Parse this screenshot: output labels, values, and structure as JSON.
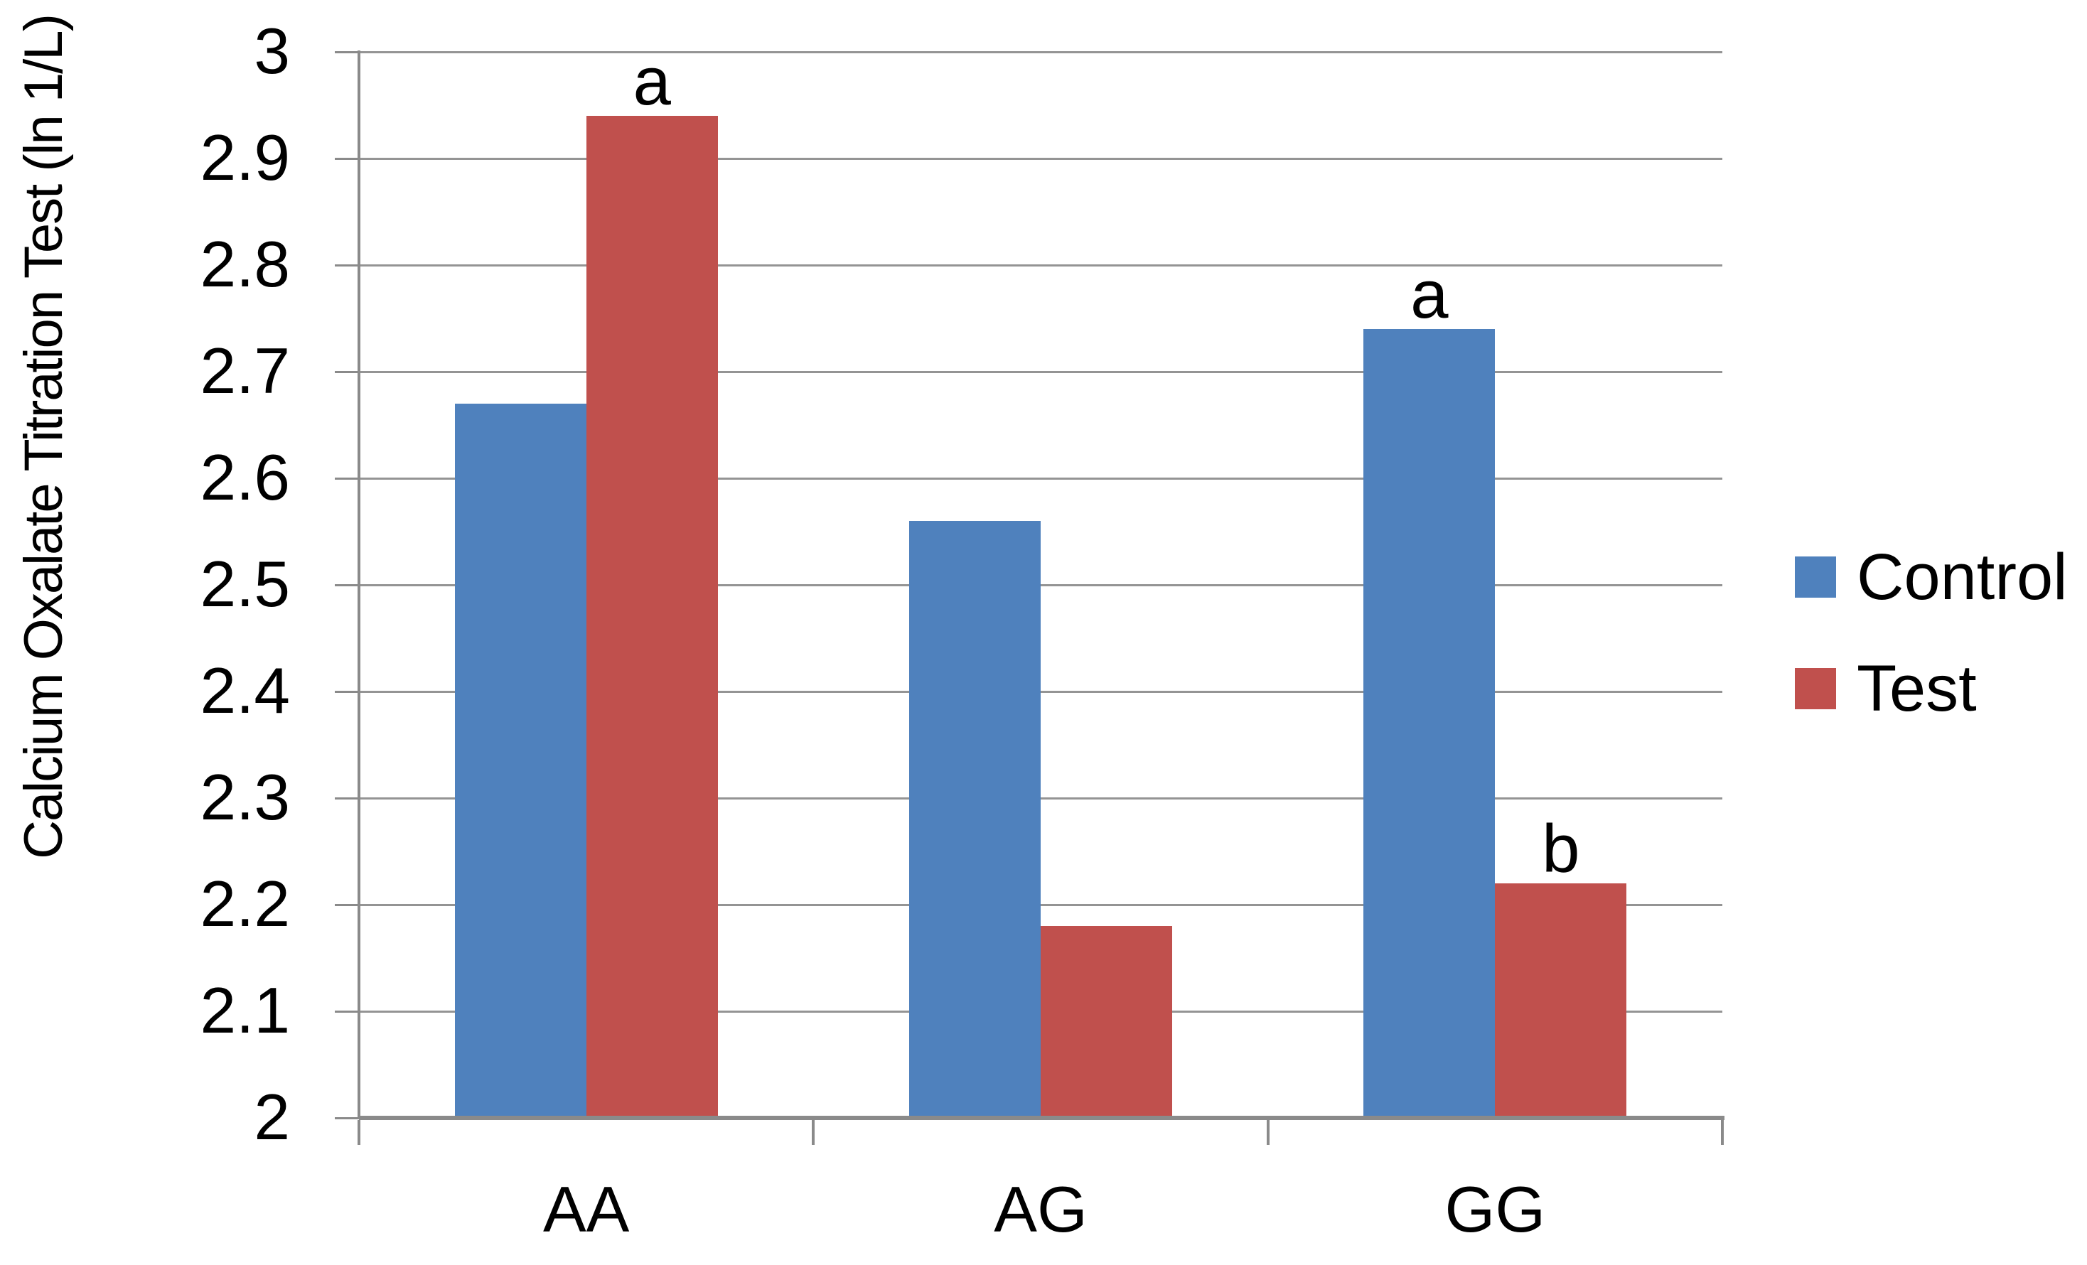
{
  "chart_data": {
    "type": "bar",
    "title": "",
    "xlabel": "",
    "ylabel": "Calcium Oxalate Titration Test (ln 1/L)",
    "categories": [
      "AA",
      "AG",
      "GG"
    ],
    "series": [
      {
        "name": "Control",
        "color": "#4F81BD",
        "values": [
          2.67,
          2.56,
          2.74
        ]
      },
      {
        "name": "Test",
        "color": "#C0504D",
        "values": [
          2.94,
          2.18,
          2.22
        ]
      }
    ],
    "annotations": [
      {
        "category": "AA",
        "series": "Test",
        "text": "a"
      },
      {
        "category": "GG",
        "series": "Control",
        "text": "a"
      },
      {
        "category": "GG",
        "series": "Test",
        "text": "b"
      }
    ],
    "ylim": [
      2,
      3
    ],
    "ytick_labels": [
      "3",
      "2.9",
      "2.8",
      "2.7",
      "2.6",
      "2.5",
      "2.4",
      "2.3",
      "2.2",
      "2.1",
      "2"
    ],
    "grid": true,
    "legend_position": "right-middle",
    "legend_entries": [
      "Control",
      "Test"
    ]
  }
}
